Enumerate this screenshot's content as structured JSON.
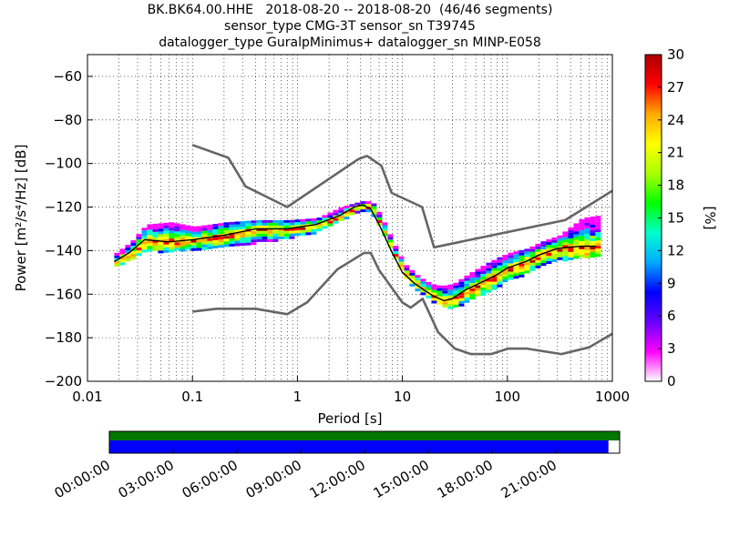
{
  "title": {
    "line1": "BK.BK64.00.HHE   2018-08-20 -- 2018-08-20  (46/46 segments)",
    "line2": "sensor_type CMG-3T sensor_sn T39745",
    "line3": "datalogger_type GuralpMinimus+ datalogger_sn MINP-E058"
  },
  "chart_data": {
    "type": "heatmap",
    "xlabel": "Period [s]",
    "ylabel": "Power [m²/s⁴/Hz] [dB]",
    "x_scale": "log",
    "xlim": [
      0.01,
      1000
    ],
    "ylim": [
      -200,
      -50
    ],
    "x_ticks": [
      0.01,
      0.1,
      1,
      10,
      100,
      1000
    ],
    "x_tick_labels": [
      "0.01",
      "0.1",
      "1",
      "10",
      "100",
      "1000"
    ],
    "y_ticks": [
      -200,
      -180,
      -160,
      -140,
      -120,
      -100,
      -80,
      -60
    ],
    "y_tick_labels": [
      "−200",
      "−180",
      "−160",
      "−140",
      "−120",
      "−100",
      "−80",
      "−60"
    ],
    "grid": true,
    "colorbar": {
      "label": "[%]",
      "min": 0,
      "max": 30,
      "ticks": [
        0,
        3,
        6,
        9,
        12,
        15,
        18,
        21,
        24,
        27,
        30
      ],
      "colormap": [
        "#ffffff",
        "#ff00ff",
        "#6600ff",
        "#0000ff",
        "#00aaff",
        "#00ffcc",
        "#00ff00",
        "#aaff00",
        "#ffff00",
        "#ffaa00",
        "#ff0000",
        "#aa0000"
      ]
    },
    "mode_line": {
      "x": [
        0.018,
        0.025,
        0.035,
        0.06,
        0.1,
        0.2,
        0.4,
        0.8,
        1.5,
        2.5,
        3.5,
        4.2,
        5,
        6,
        7,
        8,
        10,
        13,
        16,
        20,
        25,
        30,
        40,
        60,
        80,
        100,
        150,
        200,
        300,
        500,
        700
      ],
      "y": [
        -145,
        -141,
        -135,
        -136,
        -135,
        -133,
        -130,
        -130,
        -128,
        -124,
        -120,
        -119,
        -121,
        -128,
        -135,
        -141,
        -150,
        -155,
        -158,
        -161,
        -163,
        -162,
        -158,
        -154,
        -151,
        -148,
        -145,
        -142,
        -139,
        -138,
        -138
      ]
    },
    "nhnm": {
      "x": [
        0.1,
        0.22,
        0.32,
        0.8,
        3.8,
        4.6,
        6.3,
        7.9,
        15.4,
        20,
        354.8,
        1000
      ],
      "y": [
        -91.5,
        -97.4,
        -110.5,
        -120,
        -98,
        -96.5,
        -101,
        -113.5,
        -120,
        -138.5,
        -126,
        -112.5
      ]
    },
    "nlnm": {
      "x": [
        0.1,
        0.17,
        0.4,
        0.8,
        1.24,
        2.4,
        4.3,
        5,
        6,
        10,
        12,
        15.6,
        21.9,
        31.6,
        45,
        70,
        101,
        154,
        328,
        600,
        1000
      ],
      "y": [
        -168,
        -166.7,
        -166.7,
        -169.2,
        -163.7,
        -148.6,
        -141.1,
        -141.1,
        -149,
        -163.8,
        -166.2,
        -162.1,
        -177.5,
        -185,
        -187.5,
        -187.5,
        -185,
        -185,
        -187.5,
        -184.4,
        -178.2
      ]
    },
    "psd_band": {
      "x": [
        0.018,
        0.025,
        0.035,
        0.06,
        0.1,
        0.2,
        0.4,
        0.8,
        1.5,
        2.5,
        3.5,
        4.2,
        5,
        6,
        7,
        8,
        10,
        13,
        16,
        20,
        25,
        30,
        40,
        60,
        80,
        100,
        150,
        200,
        300,
        500,
        700
      ],
      "y_low": [
        -147,
        -144,
        -140,
        -140,
        -139,
        -138,
        -136,
        -134,
        -131,
        -126,
        -122,
        -121,
        -124,
        -130,
        -137,
        -143,
        -152,
        -158,
        -161,
        -164,
        -166,
        -166,
        -163,
        -159,
        -156,
        -153,
        -150,
        -147,
        -144,
        -143,
        -142
      ],
      "y_high": [
        -141,
        -136,
        -128,
        -127,
        -129,
        -127,
        -126,
        -126,
        -125,
        -120,
        -118,
        -117,
        -118,
        -124,
        -131,
        -137,
        -146,
        -151,
        -154,
        -156,
        -156,
        -155,
        -151,
        -146,
        -143,
        -141,
        -139,
        -136,
        -133,
        -125,
        -124
      ]
    }
  },
  "time_bar": {
    "tick_labels": [
      "00:00:00",
      "03:00:00",
      "06:00:00",
      "09:00:00",
      "12:00:00",
      "15:00:00",
      "18:00:00",
      "21:00:00"
    ],
    "segments_color": "#007700",
    "coverage_color": "#0000ff",
    "coverage_fraction": 0.978
  },
  "colors": {
    "model_lines": "#666666",
    "mode_line": "#000000"
  }
}
